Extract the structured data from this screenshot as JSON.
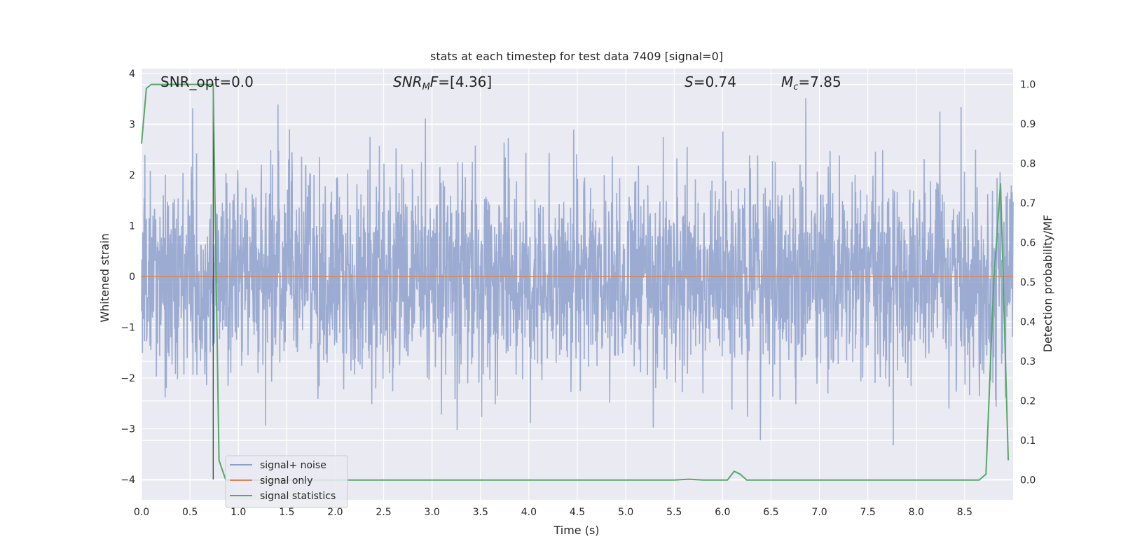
{
  "chart_data": {
    "type": "line",
    "title": "stats at each timestep for test data 7409 [signal=0]",
    "xlabel": "Time (s)",
    "ylabel": "Whitened strain",
    "y2label": "Detection probability/MF",
    "xlim": [
      0.0,
      9.0
    ],
    "ylim": [
      -4.4,
      4.1
    ],
    "y2lim": [
      -0.05,
      1.04
    ],
    "xticks": [
      "0.0",
      "0.5",
      "1.0",
      "1.5",
      "2.0",
      "2.5",
      "3.0",
      "3.5",
      "4.0",
      "4.5",
      "5.0",
      "5.5",
      "6.0",
      "6.5",
      "7.0",
      "7.5",
      "8.0",
      "8.5"
    ],
    "yticks": [
      "−4",
      "−3",
      "−2",
      "−1",
      "0",
      "1",
      "2",
      "3",
      "4"
    ],
    "y2ticks": [
      "0.0",
      "0.1",
      "0.2",
      "0.3",
      "0.4",
      "0.5",
      "0.6",
      "0.7",
      "0.8",
      "0.9",
      "1.0"
    ],
    "grid": true,
    "legend_position": "lower-left",
    "annotations": [
      {
        "text": "SNR_opt=0.0",
        "x": 0.2,
        "y": 3.95
      },
      {
        "text": "SNR_MF=[4.36]",
        "x": 2.6,
        "y": 3.95
      },
      {
        "text": "S=0.74",
        "x": 5.6,
        "y": 3.95
      },
      {
        "text": "M_c=7.85",
        "x": 6.6,
        "y": 3.95
      }
    ],
    "series": [
      {
        "name": "signal+ noise",
        "color": "#8da0cb",
        "style": "whitened-noise",
        "envelope_sigma": 1.0,
        "sample_rate_hz": 320
      },
      {
        "name": "signal only",
        "color": "#dd8452",
        "x": [
          0.0,
          9.0
        ],
        "y": [
          0.0,
          0.0
        ]
      },
      {
        "name": "signal statistics",
        "color": "#55a868",
        "axis": "right",
        "x": [
          0.0,
          0.05,
          0.1,
          0.5,
          0.74,
          0.8,
          0.87,
          1.0,
          2.0,
          3.0,
          4.0,
          5.0,
          5.5,
          5.65,
          5.8,
          6.05,
          6.12,
          6.18,
          6.25,
          7.0,
          8.0,
          8.65,
          8.72,
          8.8,
          8.87,
          8.95
        ],
        "y": [
          0.85,
          0.99,
          1.0,
          1.0,
          1.0,
          0.05,
          0.0,
          0.0,
          0.0,
          0.0,
          0.0,
          0.0,
          0.0,
          0.002,
          0.0,
          0.0,
          0.022,
          0.015,
          0.0,
          0.0,
          0.0,
          0.0,
          0.015,
          0.5,
          0.75,
          0.05
        ]
      }
    ],
    "marker_line": {
      "x": 0.74,
      "color": "#333333"
    }
  }
}
